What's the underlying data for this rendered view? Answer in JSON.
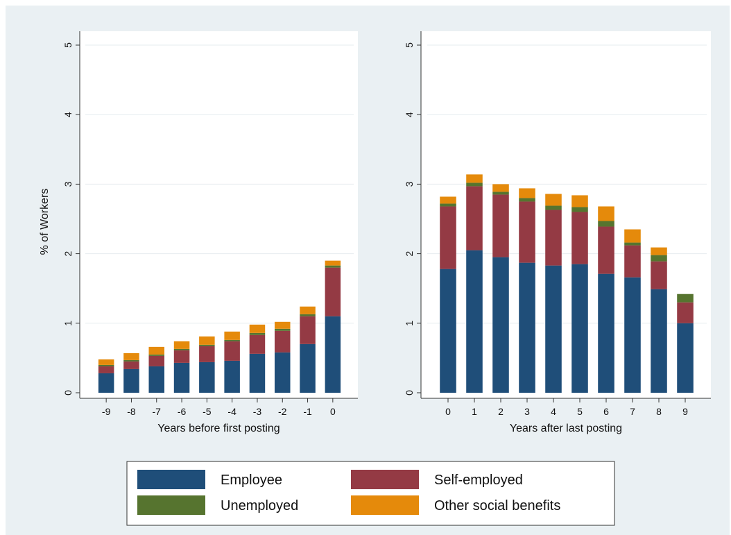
{
  "chart_data": {
    "type": "bar",
    "stacked": true,
    "legend": {
      "placement": "bottom",
      "entries": [
        {
          "name": "Employee",
          "color": "#1f4e79"
        },
        {
          "name": "Self-employed",
          "color": "#943a44"
        },
        {
          "name": "Unemployed",
          "color": "#56742f"
        },
        {
          "name": "Other social benefits",
          "color": "#e58a0b"
        }
      ]
    },
    "panels": [
      {
        "xlabel": "Years before first posting",
        "ylabel": "% of Workers",
        "ylim": [
          0,
          5
        ],
        "yticks": [
          "0",
          "1",
          "2",
          "3",
          "4",
          "5"
        ],
        "grid": true,
        "categories": [
          "-9",
          "-8",
          "-7",
          "-6",
          "-5",
          "-4",
          "-3",
          "-2",
          "-1",
          "0"
        ],
        "series": [
          {
            "name": "Employee",
            "values": [
              0.28,
              0.34,
              0.38,
              0.43,
              0.44,
              0.46,
              0.56,
              0.58,
              0.7,
              1.1
            ]
          },
          {
            "name": "Self-employed",
            "values": [
              0.1,
              0.11,
              0.15,
              0.18,
              0.23,
              0.28,
              0.27,
              0.31,
              0.4,
              0.7
            ]
          },
          {
            "name": "Unemployed",
            "values": [
              0.02,
              0.02,
              0.02,
              0.02,
              0.02,
              0.02,
              0.03,
              0.03,
              0.03,
              0.03
            ]
          },
          {
            "name": "Other social benefits",
            "values": [
              0.08,
              0.1,
              0.11,
              0.11,
              0.12,
              0.12,
              0.12,
              0.1,
              0.11,
              0.07
            ]
          }
        ]
      },
      {
        "xlabel": "Years after last posting",
        "ylabel": "",
        "ylim": [
          0,
          5
        ],
        "yticks": [
          "0",
          "1",
          "2",
          "3",
          "4",
          "5"
        ],
        "grid": true,
        "categories": [
          "0",
          "1",
          "2",
          "3",
          "4",
          "5",
          "6",
          "7",
          "8",
          "9"
        ],
        "series": [
          {
            "name": "Employee",
            "values": [
              1.78,
              2.05,
              1.95,
              1.87,
              1.83,
              1.85,
              1.71,
              1.66,
              1.49,
              1.0
            ]
          },
          {
            "name": "Self-employed",
            "values": [
              0.9,
              0.92,
              0.9,
              0.88,
              0.8,
              0.75,
              0.68,
              0.46,
              0.4,
              0.3
            ]
          },
          {
            "name": "Unemployed",
            "values": [
              0.04,
              0.05,
              0.04,
              0.05,
              0.06,
              0.07,
              0.08,
              0.04,
              0.09,
              0.12
            ]
          },
          {
            "name": "Other social benefits",
            "values": [
              0.1,
              0.12,
              0.11,
              0.14,
              0.17,
              0.17,
              0.21,
              0.19,
              0.11,
              0.0
            ]
          }
        ]
      }
    ]
  }
}
